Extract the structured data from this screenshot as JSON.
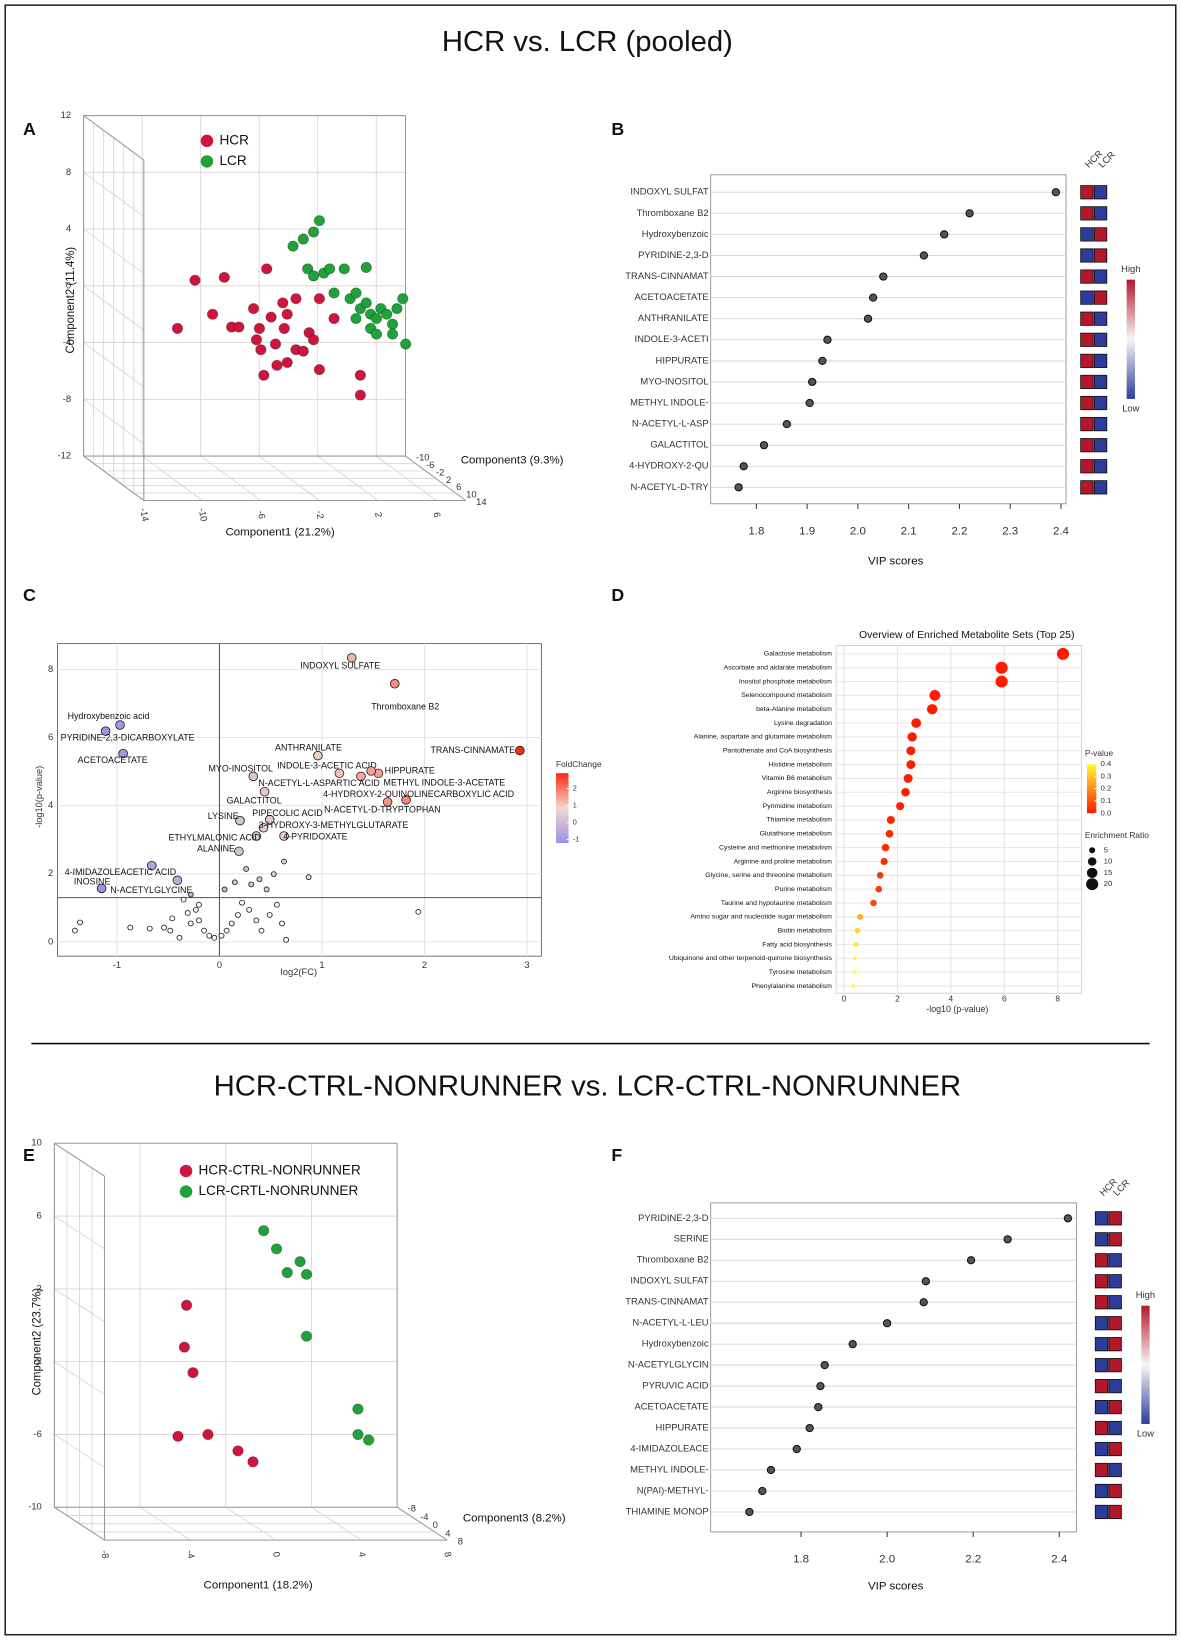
{
  "titles": [
    "HCR vs. LCR (pooled)",
    "HCR-CTRL-NONRUNNER vs. LCR-CTRL-NONRUNNER"
  ],
  "chart_data": [
    {
      "type": "scatter3d",
      "panel": "A",
      "xlabel": "Component1 (21.2%)",
      "ylabel": "Component2 (11.4%)",
      "zlabel": "Component3 (9.3%)",
      "xlim": [
        -14,
        8
      ],
      "xticks": [
        -14,
        -10,
        -6,
        -2,
        2,
        6
      ],
      "ylim": [
        -12,
        12
      ],
      "yticks": [
        -12,
        -8,
        -4,
        0,
        4,
        8,
        12
      ],
      "zlim": [
        -10,
        14
      ],
      "zticks": [
        -10,
        -6,
        -2,
        2,
        6,
        10,
        14
      ],
      "grid": true,
      "series": [
        {
          "name": "HCR",
          "color": "#d0143c",
          "x": [
            -9.3,
            -8.1,
            -6.9,
            -6.1,
            -5.6,
            -5.1,
            -4.1,
            -3.7,
            -3.2,
            -2.9,
            -2.6,
            -2.1,
            -2.0,
            -1.8,
            -1.2,
            -1.2,
            -0.7,
            -0.3,
            0,
            0.4,
            0.4,
            -3.9,
            -3.4,
            -3.6,
            -2.5,
            1.4,
            3.2,
            3.2,
            -1.8
          ],
          "y": [
            -1.7,
            1.7,
            -0.7,
            1.9,
            -1.6,
            -1.6,
            -0.3,
            -1.7,
            2.5,
            -0.9,
            -2.8,
            0.1,
            -1.7,
            -4.1,
            -3.2,
            0.4,
            -3.3,
            -2.0,
            -2.5,
            -4.6,
            0.4,
            -2.5,
            -5.0,
            -3.2,
            -4.3,
            -1.0,
            -5.0,
            -6.4,
            -0.7
          ]
        },
        {
          "name": "LCR",
          "color": "#1fa23a",
          "x": [
            0.4,
            0,
            -0.7,
            -1.4,
            -0.4,
            0,
            0.7,
            1.1,
            2.1,
            2.5,
            2.9,
            3.2,
            3.6,
            3.9,
            3.9,
            4.3,
            4.6,
            5.0,
            5.4,
            5.4,
            5.7,
            6.1,
            6.3,
            3.6,
            2.9,
            4.3,
            1.4
          ],
          "y": [
            5.9,
            5.1,
            4.6,
            4.1,
            2.5,
            2.0,
            2.2,
            2.5,
            2.5,
            0.4,
            0.8,
            -0.3,
            0.1,
            -0.7,
            -1.7,
            -1.0,
            -0.3,
            -0.7,
            -1.4,
            -2.1,
            -0.3,
            0.4,
            -2.8,
            2.6,
            -1.0,
            -2.1,
            0.8
          ]
        }
      ]
    },
    {
      "type": "lollipop",
      "panel": "B",
      "xlabel": "VIP scores",
      "color": "#555555",
      "categories": [
        "INDOXYL SULFAT",
        "Thromboxane B2",
        "Hydroxybenzoic",
        "PYRIDINE-2,3-D",
        "TRANS-CINNAMAT",
        "ACETOACETATE",
        "ANTHRANILATE",
        "INDOLE-3-ACETI",
        "HIPPURATE",
        "MYO-INOSITOL",
        "METHYL INDOLE-",
        "N-ACETYL-L-ASP",
        "GALACTITOL",
        "4-HYDROXY-2-QU",
        "N-ACETYL-D-TRY"
      ],
      "values": [
        2.39,
        2.22,
        2.17,
        2.13,
        2.05,
        2.03,
        2.02,
        1.94,
        1.93,
        1.91,
        1.905,
        1.86,
        1.815,
        1.775,
        1.765
      ],
      "xlim": [
        1.71,
        2.41
      ],
      "xticks": [
        1.8,
        1.9,
        {
          "value": 2,
          "label": "2.0"
        },
        2.1,
        2.2,
        2.3,
        2.4
      ],
      "grid": true,
      "heatmap_columns": [
        "HCR",
        "LCR"
      ],
      "cell_colors": [
        [
          "#b2182b",
          "#2d3c99"
        ],
        [
          "#b2182b",
          "#2d3c99"
        ],
        [
          "#2d3c99",
          "#b2182b"
        ],
        [
          "#2d3c99",
          "#b2182b"
        ],
        [
          "#b2182b",
          "#2d3c99"
        ],
        [
          "#2d3c99",
          "#b2182b"
        ],
        [
          "#b2182b",
          "#2d3c99"
        ],
        [
          "#b2182b",
          "#2d3c99"
        ],
        [
          "#b2182b",
          "#2d3c99"
        ],
        [
          "#b2182b",
          "#2d3c99"
        ],
        [
          "#b2182b",
          "#2d3c99"
        ],
        [
          "#b2182b",
          "#2d3c99"
        ],
        [
          "#b2182b",
          "#2d3c99"
        ],
        [
          "#b2182b",
          "#2d3c99"
        ],
        [
          "#b2182b",
          "#2d3c99"
        ]
      ],
      "colorbar": [
        "#2d3c99",
        "#f7f7f7",
        "#b2182b"
      ],
      "colorbar_labels": [
        "High",
        "Low"
      ]
    },
    {
      "type": "volcano",
      "panel": "C",
      "xlabel": "log2(FC)",
      "ylabel": "-log10(p-value)",
      "xlim": [
        -1.58,
        3.14
      ],
      "xticks": [
        -1,
        0,
        1,
        2,
        3
      ],
      "ylim": [
        -0.42,
        8.76
      ],
      "yticks": [
        0,
        2,
        4,
        6,
        8
      ],
      "grid": true,
      "hline": 1.3,
      "vline": 0,
      "x": [
        1.29,
        1.71,
        2.93,
        -0.97,
        -1.11,
        -0.94,
        0.96,
        1.17,
        1.55,
        0.33,
        1.38,
        1.48,
        1.82,
        1.64,
        0.44,
        0.2,
        0.49,
        0.43,
        0.63,
        0.36,
        0.19,
        -0.66,
        -0.41,
        -1.15,
        -1.36,
        -1.41,
        -0.87,
        -0.68,
        -0.54,
        -0.48,
        -0.39,
        -0.35,
        -0.28,
        -0.23,
        -0.2,
        -0.15,
        -0.1,
        -0.05,
        0.02,
        0.07,
        0.12,
        0.18,
        0.22,
        0.29,
        0.36,
        0.41,
        0.49,
        0.56,
        0.61,
        0.65,
        -0.2,
        -0.31,
        1.94,
        0.31,
        0.26,
        0.46,
        0.53,
        0.87,
        0.63,
        0.39,
        0.05,
        0.15,
        -0.28,
        -0.46
      ],
      "y": [
        8.34,
        7.58,
        5.62,
        6.37,
        6.19,
        5.53,
        5.47,
        4.95,
        4.95,
        4.86,
        4.86,
        5.02,
        4.17,
        4.11,
        4.41,
        3.56,
        3.59,
        3.35,
        3.11,
        3.11,
        2.66,
        2.24,
        1.81,
        1.57,
        0.57,
        0.33,
        0.42,
        0.39,
        0.42,
        0.33,
        0.12,
        1.24,
        1.39,
        0.94,
        0.63,
        0.33,
        0.18,
        0.12,
        0.18,
        0.33,
        0.54,
        0.79,
        1.15,
        0.94,
        0.63,
        0.33,
        0.79,
        1.09,
        0.54,
        0.06,
        1.09,
        0.85,
        0.88,
        1.69,
        2.14,
        1.54,
        1.99,
        1.9,
        2.36,
        1.84,
        1.54,
        1.75,
        0.54,
        0.69
      ],
      "labels": [
        "INDOXYL SULFATE",
        "Thromboxane B2",
        "TRANS-CINNAMATE",
        "Hydroxybenzoic acid",
        "PYRIDINE-2,3-DICARBOXYLATE",
        "ACETOACETATE",
        "ANTHRANILATE",
        "INDOLE-3-ACETIC ACID",
        "HIPPURATE",
        "MYO-INOSITOL",
        "N-ACETYL-L-ASPARTIC ACID",
        "METHYL INDOLE-3-ACETATE",
        "4-HYDROXY-2-QUINOLINECARBOXYLIC ACID",
        "N-ACETYL-D-TRYPTOPHAN",
        "GALACTITOL",
        "LYSINE",
        "PIPECOLIC ACID",
        "3-HYDROXY-3-METHYLGLUTARATE",
        "4-PYRIDOXATE",
        "ETHYLMALONIC ACID",
        "ALANINE",
        "4-IMIDAZOLEACETIC ACID",
        "N-ACETYLGLYCINE",
        "INOSINE",
        null,
        null,
        null,
        null,
        null,
        null,
        null,
        null,
        null,
        null,
        null,
        null,
        null,
        null,
        null,
        null,
        null,
        null,
        null,
        null,
        null,
        null,
        null,
        null,
        null,
        null,
        null,
        null,
        null,
        null,
        null,
        null,
        null,
        null,
        null,
        null,
        null,
        null,
        null,
        null
      ],
      "legend_title": "FoldChange",
      "colorlim": [
        -1.2,
        2.9
      ],
      "color_scale": [
        "#9d8fe6",
        "#f0d8d0",
        "#ff2a10"
      ],
      "cticks": [
        2,
        1,
        0,
        -1
      ]
    },
    {
      "type": "enrichment",
      "panel": "D",
      "title": "Overview of Enriched Metabolite Sets (Top 25)",
      "xlabel": "-log10 (p-value)",
      "categories": [
        "Galactose metabolism",
        "Ascorbate and aldarate metabolism",
        "Inositol phosphate metabolism",
        "Selenocompound metabolism",
        "beta-Alanine metabolism",
        "Lysine degradation",
        "Alanine, aspartate and glutamate metabolism",
        "Pantothenate and CoA biosynthesis",
        "Histidine metabolism",
        "Vitamin B6 metabolism",
        "Arginine biosynthesis",
        "Pyrimidine metabolism",
        "Thiamine metabolism",
        "Glutathione metabolism",
        "Cysteine and methionine metabolism",
        "Arginine and proline metabolism",
        "Glycine, serine and threonine metabolism",
        "Purine metabolism",
        "Taurine and hypotaurine metabolism",
        "Amino sugar and nucleotide sugar metabolism",
        "Biotin metabolism",
        "Fatty acid biosynthesis",
        "Ubiquinone and other terpenoid-quinone biosynthesis",
        "Tyrosine metabolism",
        "Phenylalanine metabolism"
      ],
      "values": [
        8.2,
        5.9,
        5.9,
        3.4,
        3.3,
        2.7,
        2.55,
        2.5,
        2.5,
        2.4,
        2.3,
        2.1,
        1.75,
        1.7,
        1.55,
        1.5,
        1.35,
        1.3,
        1.1,
        0.6,
        0.5,
        0.45,
        0.4,
        0.4,
        0.35
      ],
      "sizes": [
        20,
        20,
        20,
        16,
        15,
        13,
        12,
        11,
        11,
        11,
        10,
        9,
        9,
        8,
        8,
        7,
        6,
        6,
        6,
        5,
        4,
        3,
        2,
        2,
        2
      ],
      "xlim": [
        -0.3,
        8.9
      ],
      "xticks": [
        0,
        2,
        4,
        6,
        8
      ],
      "grid": true,
      "color_title": "P-value",
      "color_scale": [
        "#ff1a00",
        "#ffff33"
      ],
      "cticks": [
        0.4,
        0.3,
        0.2,
        0.1,
        {
          "value": 0,
          "label": "0.0"
        }
      ],
      "size_title": "Enrichment Ratio",
      "size_ticks": [
        5,
        10,
        15,
        20
      ]
    },
    {
      "type": "scatter3d",
      "panel": "E",
      "xlabel": "Component1 (18.2%)",
      "ylabel": "Component2 (23.7%)",
      "zlabel": "Component3 (8.2%)",
      "xlim": [
        -8,
        8
      ],
      "xticks": [
        -8,
        -4,
        0,
        4,
        8
      ],
      "ylim": [
        -10,
        10
      ],
      "yticks": [
        -10,
        -6,
        -2,
        2,
        6,
        10
      ],
      "zlim": [
        -8,
        8
      ],
      "zticks": [
        -8,
        -4,
        0,
        4,
        8
      ],
      "grid": true,
      "series": [
        {
          "name": "HCR-CTRL-NONRUNNER",
          "color": "#d0143c",
          "x": [
            -3.0,
            -3.1,
            -2.7,
            -3.4,
            -2.0,
            -0.6,
            0.1
          ],
          "y": [
            2.0,
            -0.3,
            -1.7,
            -5.2,
            -5.1,
            -6.0,
            -6.6
          ]
        },
        {
          "name": "LCR-CRTL-NONRUNNER",
          "color": "#1fa23a",
          "x": [
            0.6,
            1.2,
            1.7,
            2.3,
            2.6,
            2.6,
            5.0,
            5.0,
            5.5
          ],
          "y": [
            6.1,
            5.1,
            3.8,
            4.4,
            3.7,
            0.3,
            -3.7,
            -5.1,
            -5.4
          ]
        }
      ]
    },
    {
      "type": "lollipop",
      "panel": "F",
      "xlabel": "VIP scores",
      "color": "#555555",
      "categories": [
        "PYRIDINE-2,3-D",
        "SERINE",
        "Thromboxane B2",
        "INDOXYL SULFAT",
        "TRANS-CINNAMAT",
        "N-ACETYL-L-LEU",
        "Hydroxybenzoic",
        "N-ACETYLGLYCIN",
        "PYRUVIC ACID",
        "ACETOACETATE",
        "HIPPURATE",
        "4-IMIDAZOLEACE",
        "METHYL INDOLE-",
        "N(PAI)-METHYL-",
        "THIAMINE MONOP"
      ],
      "values": [
        2.42,
        2.28,
        2.195,
        2.09,
        2.085,
        2.0,
        1.92,
        1.855,
        1.845,
        1.84,
        1.82,
        1.79,
        1.73,
        1.71,
        1.68
      ],
      "xlim": [
        1.59,
        2.44
      ],
      "xticks": [
        1.8,
        {
          "value": 2,
          "label": "2.0"
        },
        2.2,
        2.4
      ],
      "grid": true,
      "heatmap_columns": [
        "HCR",
        "LCR"
      ],
      "cell_colors": [
        [
          "#2d3c99",
          "#b2182b"
        ],
        [
          "#2d3c99",
          "#b2182b"
        ],
        [
          "#b2182b",
          "#2d3c99"
        ],
        [
          "#b2182b",
          "#2d3c99"
        ],
        [
          "#b2182b",
          "#2d3c99"
        ],
        [
          "#2d3c99",
          "#b2182b"
        ],
        [
          "#2d3c99",
          "#b2182b"
        ],
        [
          "#2d3c99",
          "#b2182b"
        ],
        [
          "#b2182b",
          "#2d3c99"
        ],
        [
          "#2d3c99",
          "#b2182b"
        ],
        [
          "#b2182b",
          "#2d3c99"
        ],
        [
          "#2d3c99",
          "#b2182b"
        ],
        [
          "#b2182b",
          "#2d3c99"
        ],
        [
          "#2d3c99",
          "#b2182b"
        ],
        [
          "#2d3c99",
          "#b2182b"
        ]
      ],
      "colorbar": [
        "#2d3c99",
        "#f7f7f7",
        "#b2182b"
      ],
      "colorbar_labels": [
        "High",
        "Low"
      ]
    }
  ]
}
